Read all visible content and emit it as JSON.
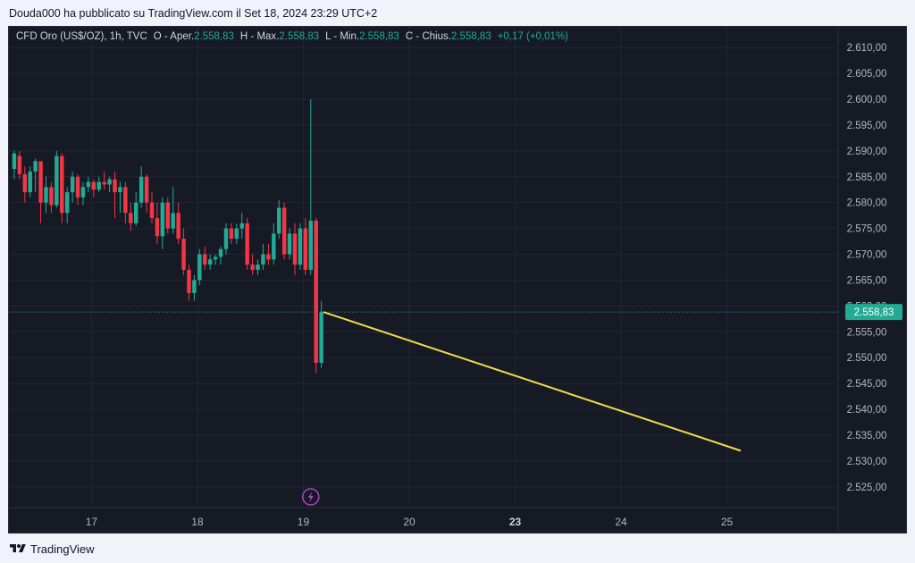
{
  "header": {
    "title": "Douda000 ha pubblicato su TradingView.com il Set 18, 2024 23:29 UTC+2"
  },
  "legend": {
    "symbol": "CFD Oro (US$/OZ), 1h, TVC",
    "open_label": "O - Aper.",
    "open_value": "2.558,83",
    "high_label": "H - Max.",
    "high_value": "2.558,83",
    "low_label": "L - Min.",
    "low_value": "2.558,83",
    "close_label": "C - Chius.",
    "close_value": "2.558,83",
    "change": "+0,17 (+0,01%)"
  },
  "footer": {
    "brand": "TradingView"
  },
  "colors": {
    "up": "#22ab94",
    "down": "#f23645",
    "projection": "#f2d94a",
    "price_tag": "#22ab94",
    "event_marker": "#ab47bc"
  },
  "chart_data": {
    "type": "candlestick",
    "symbol": "CFD Oro (US$/OZ)",
    "interval": "1h",
    "ylim": [
      2521,
      2614
    ],
    "y_ticks": [
      "2.525,00",
      "2.530,00",
      "2.535,00",
      "2.540,00",
      "2.545,00",
      "2.550,00",
      "2.555,00",
      "2.560,00",
      "2.565,00",
      "2.570,00",
      "2.575,00",
      "2.580,00",
      "2.585,00",
      "2.590,00",
      "2.595,00",
      "2.600,00",
      "2.605,00",
      "2.610,00"
    ],
    "y_tick_values": [
      2525,
      2530,
      2535,
      2540,
      2545,
      2550,
      2555,
      2560,
      2565,
      2570,
      2575,
      2580,
      2585,
      2590,
      2595,
      2600,
      2605,
      2610
    ],
    "x_ticks": [
      {
        "label": "17",
        "t": 7.0,
        "bold": false
      },
      {
        "label": "18",
        "t": 17.0,
        "bold": false
      },
      {
        "label": "19",
        "t": 27.0,
        "bold": false
      },
      {
        "label": "20",
        "t": 37.0,
        "bold": false
      },
      {
        "label": "23",
        "t": 47.0,
        "bold": true
      },
      {
        "label": "24",
        "t": 57.0,
        "bold": false
      },
      {
        "label": "25",
        "t": 67.0,
        "bold": false
      }
    ],
    "t_range": [
      -0.8,
      77.5
    ],
    "last_price": 2558.83,
    "last_price_label": "2.558,83",
    "candles": [
      {
        "t": -0.3,
        "o": 2586.5,
        "h": 2590,
        "l": 2584.5,
        "c": 2589.5
      },
      {
        "t": 0.2,
        "o": 2589,
        "h": 2590,
        "l": 2584.5,
        "c": 2585.5
      },
      {
        "t": 0.7,
        "o": 2585.5,
        "h": 2587,
        "l": 2580,
        "c": 2582
      },
      {
        "t": 1.2,
        "o": 2582,
        "h": 2587,
        "l": 2581,
        "c": 2586
      },
      {
        "t": 1.7,
        "o": 2586,
        "h": 2588.5,
        "l": 2582,
        "c": 2588
      },
      {
        "t": 2.2,
        "o": 2588,
        "h": 2588,
        "l": 2576,
        "c": 2580
      },
      {
        "t": 2.7,
        "o": 2580,
        "h": 2585,
        "l": 2578,
        "c": 2583
      },
      {
        "t": 3.2,
        "o": 2583,
        "h": 2584,
        "l": 2578,
        "c": 2579.5
      },
      {
        "t": 3.7,
        "o": 2579.5,
        "h": 2590,
        "l": 2579,
        "c": 2589
      },
      {
        "t": 4.2,
        "o": 2589,
        "h": 2589.5,
        "l": 2576,
        "c": 2578
      },
      {
        "t": 4.7,
        "o": 2578,
        "h": 2583,
        "l": 2576,
        "c": 2582
      },
      {
        "t": 5.2,
        "o": 2582,
        "h": 2586,
        "l": 2580,
        "c": 2585
      },
      {
        "t": 5.7,
        "o": 2585,
        "h": 2585.5,
        "l": 2579.5,
        "c": 2581
      },
      {
        "t": 6.2,
        "o": 2581,
        "h": 2584,
        "l": 2579.5,
        "c": 2583
      },
      {
        "t": 6.7,
        "o": 2583,
        "h": 2585,
        "l": 2582,
        "c": 2584
      },
      {
        "t": 7.2,
        "o": 2584,
        "h": 2584.5,
        "l": 2581,
        "c": 2582.5
      },
      {
        "t": 7.7,
        "o": 2582.5,
        "h": 2585,
        "l": 2582,
        "c": 2584
      },
      {
        "t": 8.2,
        "o": 2584,
        "h": 2586,
        "l": 2582.5,
        "c": 2583.5
      },
      {
        "t": 8.7,
        "o": 2583.5,
        "h": 2585,
        "l": 2582,
        "c": 2584.5
      },
      {
        "t": 9.2,
        "o": 2584.5,
        "h": 2586,
        "l": 2577,
        "c": 2582
      },
      {
        "t": 9.7,
        "o": 2582,
        "h": 2584,
        "l": 2578,
        "c": 2583
      },
      {
        "t": 10.2,
        "o": 2583,
        "h": 2584,
        "l": 2576,
        "c": 2578
      },
      {
        "t": 10.7,
        "o": 2578,
        "h": 2580,
        "l": 2574.5,
        "c": 2576
      },
      {
        "t": 11.2,
        "o": 2576,
        "h": 2582,
        "l": 2575.5,
        "c": 2580
      },
      {
        "t": 11.7,
        "o": 2580,
        "h": 2587,
        "l": 2579,
        "c": 2585
      },
      {
        "t": 12.2,
        "o": 2585,
        "h": 2585.5,
        "l": 2578,
        "c": 2580
      },
      {
        "t": 12.7,
        "o": 2580,
        "h": 2582,
        "l": 2576,
        "c": 2577
      },
      {
        "t": 13.2,
        "o": 2577,
        "h": 2580,
        "l": 2572,
        "c": 2573.5
      },
      {
        "t": 13.7,
        "o": 2573.5,
        "h": 2581,
        "l": 2571,
        "c": 2580
      },
      {
        "t": 14.2,
        "o": 2580,
        "h": 2581,
        "l": 2574,
        "c": 2575
      },
      {
        "t": 14.7,
        "o": 2575,
        "h": 2583,
        "l": 2574,
        "c": 2578
      },
      {
        "t": 15.2,
        "o": 2578,
        "h": 2580,
        "l": 2572,
        "c": 2573
      },
      {
        "t": 15.7,
        "o": 2573,
        "h": 2575,
        "l": 2566,
        "c": 2567
      },
      {
        "t": 16.2,
        "o": 2567,
        "h": 2568,
        "l": 2561,
        "c": 2562.5
      },
      {
        "t": 16.7,
        "o": 2562.5,
        "h": 2566,
        "l": 2561,
        "c": 2565
      },
      {
        "t": 17.2,
        "o": 2565,
        "h": 2571,
        "l": 2564,
        "c": 2570
      },
      {
        "t": 17.7,
        "o": 2570,
        "h": 2571.5,
        "l": 2567,
        "c": 2568
      },
      {
        "t": 18.2,
        "o": 2568,
        "h": 2570,
        "l": 2567,
        "c": 2569
      },
      {
        "t": 18.7,
        "o": 2569,
        "h": 2570,
        "l": 2568,
        "c": 2569.5
      },
      {
        "t": 19.2,
        "o": 2569.5,
        "h": 2571.5,
        "l": 2568,
        "c": 2571
      },
      {
        "t": 19.7,
        "o": 2571,
        "h": 2576,
        "l": 2570,
        "c": 2575
      },
      {
        "t": 20.2,
        "o": 2575,
        "h": 2576,
        "l": 2572,
        "c": 2573
      },
      {
        "t": 20.7,
        "o": 2573,
        "h": 2576,
        "l": 2572,
        "c": 2575
      },
      {
        "t": 21.2,
        "o": 2575,
        "h": 2578,
        "l": 2573,
        "c": 2576
      },
      {
        "t": 21.7,
        "o": 2576,
        "h": 2577,
        "l": 2567,
        "c": 2568
      },
      {
        "t": 22.2,
        "o": 2568,
        "h": 2570,
        "l": 2566,
        "c": 2567
      },
      {
        "t": 22.7,
        "o": 2567,
        "h": 2569,
        "l": 2566,
        "c": 2568
      },
      {
        "t": 23.2,
        "o": 2568,
        "h": 2572,
        "l": 2567,
        "c": 2570
      },
      {
        "t": 23.7,
        "o": 2570,
        "h": 2572,
        "l": 2568,
        "c": 2569
      },
      {
        "t": 24.2,
        "o": 2569,
        "h": 2576,
        "l": 2568,
        "c": 2574
      },
      {
        "t": 24.7,
        "o": 2574,
        "h": 2580.5,
        "l": 2573,
        "c": 2579
      },
      {
        "t": 25.2,
        "o": 2579,
        "h": 2580,
        "l": 2569,
        "c": 2570
      },
      {
        "t": 25.7,
        "o": 2570,
        "h": 2575,
        "l": 2569,
        "c": 2574
      },
      {
        "t": 26.2,
        "o": 2574,
        "h": 2576,
        "l": 2566,
        "c": 2568
      },
      {
        "t": 26.7,
        "o": 2568,
        "h": 2576,
        "l": 2567,
        "c": 2575
      },
      {
        "t": 27.2,
        "o": 2575,
        "h": 2577,
        "l": 2566,
        "c": 2567
      },
      {
        "t": 27.7,
        "o": 2567,
        "h": 2600,
        "l": 2566,
        "c": 2576.5
      },
      {
        "t": 28.2,
        "o": 2576.5,
        "h": 2577,
        "l": 2547,
        "c": 2549
      },
      {
        "t": 28.7,
        "o": 2549,
        "h": 2561,
        "l": 2548,
        "c": 2558.83
      }
    ],
    "projection": {
      "t0": 28.9,
      "y0": 2558.83,
      "t1": 68.3,
      "y1": 2532.0
    },
    "event_marker_t": 27.7
  }
}
